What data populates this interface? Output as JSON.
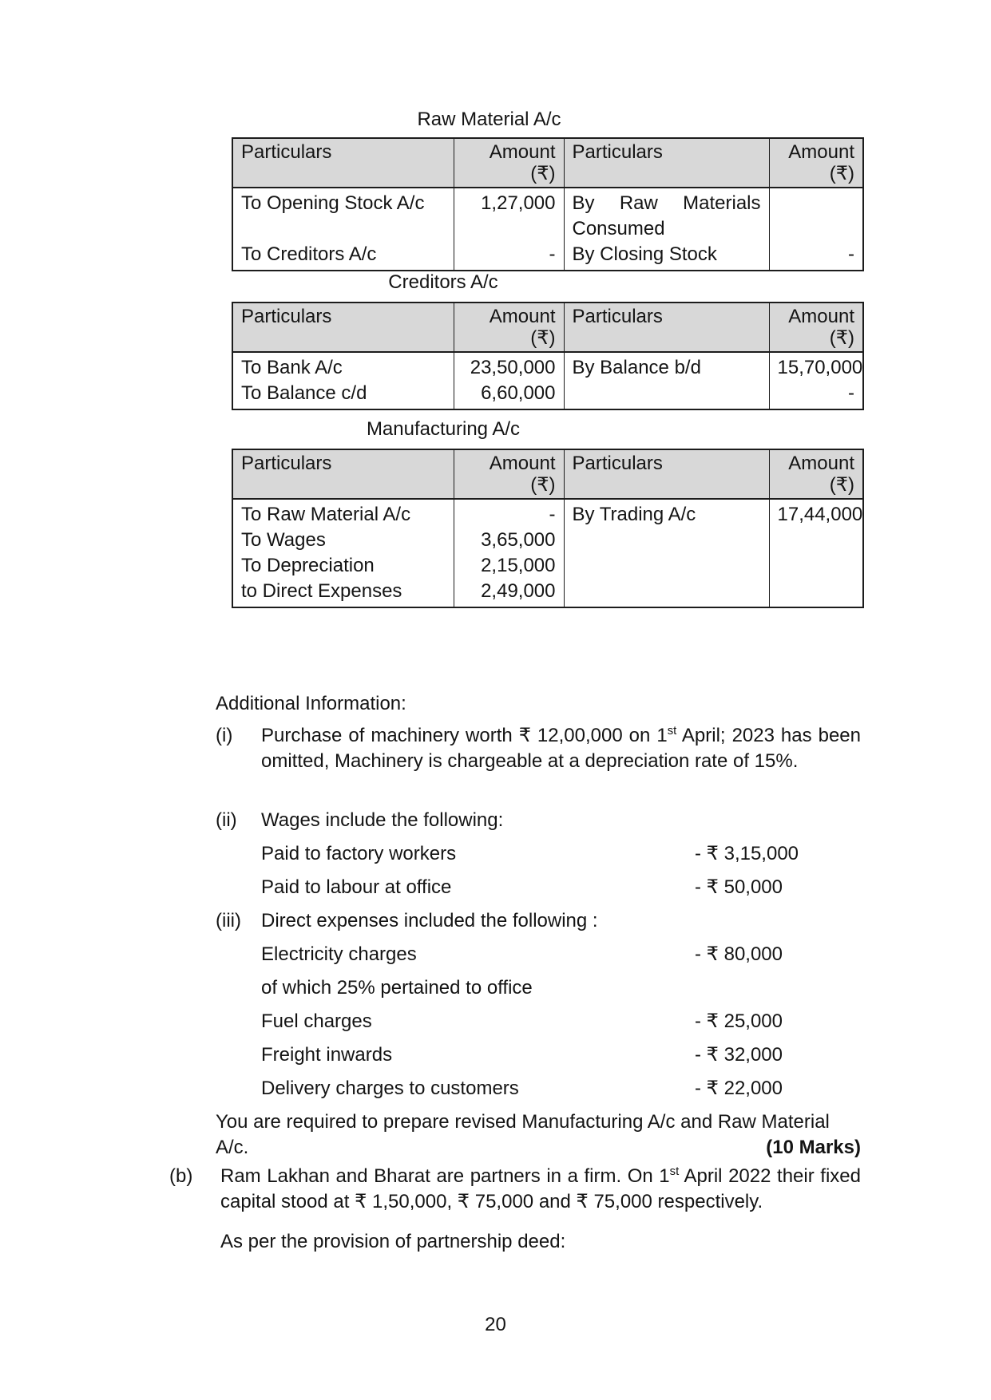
{
  "document": {
    "page_number": "20",
    "currency_symbol": "₹"
  },
  "accounts": [
    {
      "title": "Raw Material A/c",
      "header": {
        "particulars": "Particulars",
        "amount": "Amount",
        "currency_unit": "(₹)"
      },
      "debit_entries": [
        {
          "particulars": "To Opening Stock A/c",
          "amount": "1,27,000"
        },
        {
          "particulars": "To Creditors A/c",
          "amount": "-"
        }
      ],
      "credit_entries": [
        {
          "particulars": "By Raw Materials Consumed",
          "amount": ""
        },
        {
          "particulars": "By Closing Stock",
          "amount": "-"
        }
      ]
    },
    {
      "title": "Creditors A/c",
      "header": {
        "particulars": "Particulars",
        "amount": "Amount",
        "currency_unit": "(₹)"
      },
      "debit_entries": [
        {
          "particulars": "To Bank A/c",
          "amount": "23,50,000"
        },
        {
          "particulars": "To Balance c/d",
          "amount": "6,60,000"
        }
      ],
      "credit_entries": [
        {
          "particulars": "By Balance b/d",
          "amount": "15,70,000"
        },
        {
          "particulars": "",
          "amount": "-"
        }
      ]
    },
    {
      "title": "Manufacturing A/c",
      "header": {
        "particulars": "Particulars",
        "amount": "Amount",
        "currency_unit": "(₹)"
      },
      "debit_entries": [
        {
          "particulars": "To Raw Material A/c",
          "amount": "-"
        },
        {
          "particulars": "To Wages",
          "amount": "3,65,000"
        },
        {
          "particulars": "To Depreciation",
          "amount": "2,15,000"
        },
        {
          "particulars": "to Direct Expenses",
          "amount": "2,49,000"
        }
      ],
      "credit_entries": [
        {
          "particulars": "By Trading A/c",
          "amount": "17,44,000"
        }
      ]
    }
  ],
  "additional_info": {
    "heading": "Additional Information:",
    "item_i": {
      "marker": "(i)",
      "text_start": "Purchase of machinery worth ₹ 12,00,000 on 1",
      "superscript": "st",
      "text_end": " April; 2023 has been omitted, Machinery is chargeable at a depreciation rate of 15%."
    },
    "item_ii": {
      "marker": "(ii)",
      "text": "Wages include the following:",
      "rows": [
        {
          "label": "Paid to factory workers",
          "amount": "- ₹ 3,15,000"
        },
        {
          "label": "Paid to labour at office",
          "amount": "- ₹ 50,000"
        }
      ]
    },
    "item_iii": {
      "marker": "(iii)",
      "text": "Direct expenses included the following :",
      "rows": [
        {
          "label": "Electricity charges",
          "amount": "- ₹ 80,000"
        },
        {
          "label": "of which 25% pertained to office",
          "amount": ""
        },
        {
          "label": "Fuel charges",
          "amount": "- ₹ 25,000"
        },
        {
          "label": "Freight inwards",
          "amount": "- ₹ 32,000"
        },
        {
          "label": "Delivery charges to customers",
          "amount": "- ₹ 22,000"
        }
      ]
    }
  },
  "requirement": {
    "line1": "You are required to prepare revised Manufacturing A/c and Raw Material",
    "line2": "A/c.",
    "marks": "(10 Marks)"
  },
  "part_b": {
    "marker": "(b)",
    "text_start": "Ram Lakhan and Bharat are partners in a firm.  On 1",
    "superscript": "st",
    "text_end": " April 2022 their fixed capital stood at ₹ 1,50,000, ₹ 75,000 and ₹ 75,000 respectively.",
    "deed_line": "As per the provision of partnership deed:"
  }
}
